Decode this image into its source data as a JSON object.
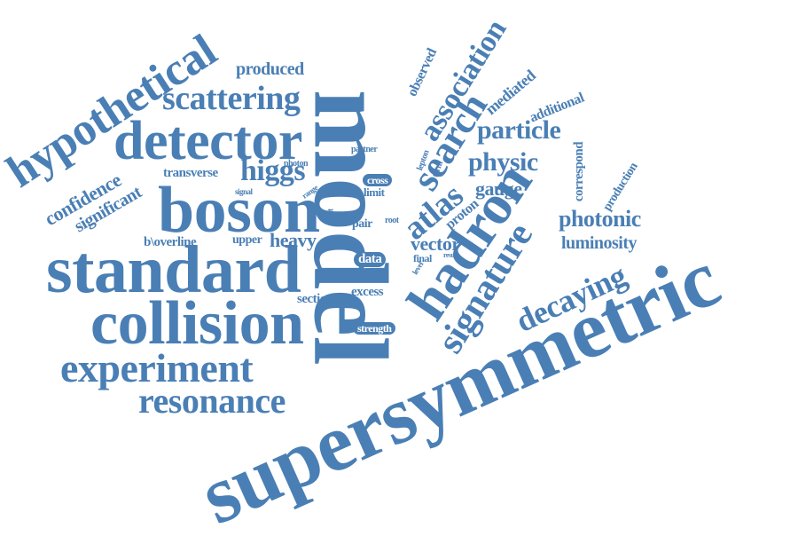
{
  "cloud": {
    "text_color": "#4a7fb5",
    "background": "#ffffff",
    "words": {
      "supersymmetric": "supersymmetric",
      "model": "model",
      "standard": "standard",
      "boson": "boson",
      "collision": "collision",
      "detector": "detector",
      "hadron": "hadron",
      "hypothetical": "hypothetical",
      "experiment": "experiment",
      "resonance": "resonance",
      "scattering": "scattering",
      "search": "search",
      "signature": "signature",
      "association": "association",
      "decaying": "decaying",
      "atlas": "atlas",
      "higgs": "higgs",
      "particle": "particle",
      "physic": "physic",
      "photonic": "photonic",
      "luminosity": "luminosity",
      "confidence": "confidence",
      "significant": "significant",
      "produced": "produced",
      "gauge": "gauge",
      "heavy": "heavy",
      "vector": "vector",
      "transverse": "transverse",
      "mediated": "mediated",
      "additional": "additional",
      "observed": "observed",
      "correspond": "correspond",
      "production": "production",
      "proton": "proton",
      "b_overline": "b\\overline",
      "upper": "upper",
      "data": "data",
      "section": "section",
      "excess": "excess",
      "strength": "strength",
      "cross": "cross",
      "limit": "limit",
      "pair": "pair",
      "final": "final",
      "partner": "partner",
      "photon": "photon",
      "lepton": "lepton",
      "term": "term",
      "signal": "signal",
      "range": "range",
      "mas": "mas",
      "event": "event",
      "jet": "jet",
      "root": "root",
      "level": "level",
      "result": "result"
    }
  }
}
